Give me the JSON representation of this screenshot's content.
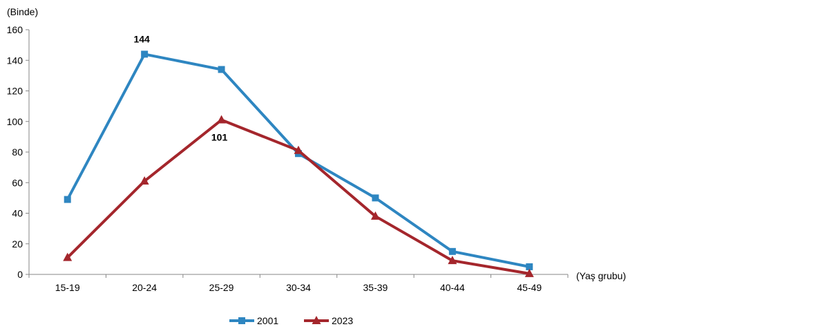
{
  "chart_data": {
    "type": "line",
    "y_unit_label": "(Binde)",
    "x_unit_label": "(Yaş grubu)",
    "categories": [
      "15-19",
      "20-24",
      "25-29",
      "30-34",
      "35-39",
      "40-44",
      "45-49"
    ],
    "ylim": [
      0,
      160
    ],
    "yticks": [
      0,
      20,
      40,
      60,
      80,
      100,
      120,
      140,
      160
    ],
    "grid": false,
    "legend_position": "bottom-center",
    "series": [
      {
        "name": "2001",
        "color": "#2E86C1",
        "marker": "square",
        "values": [
          49,
          144,
          134,
          79,
          50,
          15,
          5
        ],
        "data_labels": [
          null,
          "144",
          null,
          null,
          null,
          null,
          null
        ]
      },
      {
        "name": "2023",
        "color": "#A4262C",
        "marker": "triangle",
        "values": [
          11,
          61,
          101,
          81,
          38,
          9,
          0.5
        ],
        "data_labels": [
          null,
          null,
          "101",
          null,
          null,
          null,
          null
        ]
      }
    ]
  }
}
